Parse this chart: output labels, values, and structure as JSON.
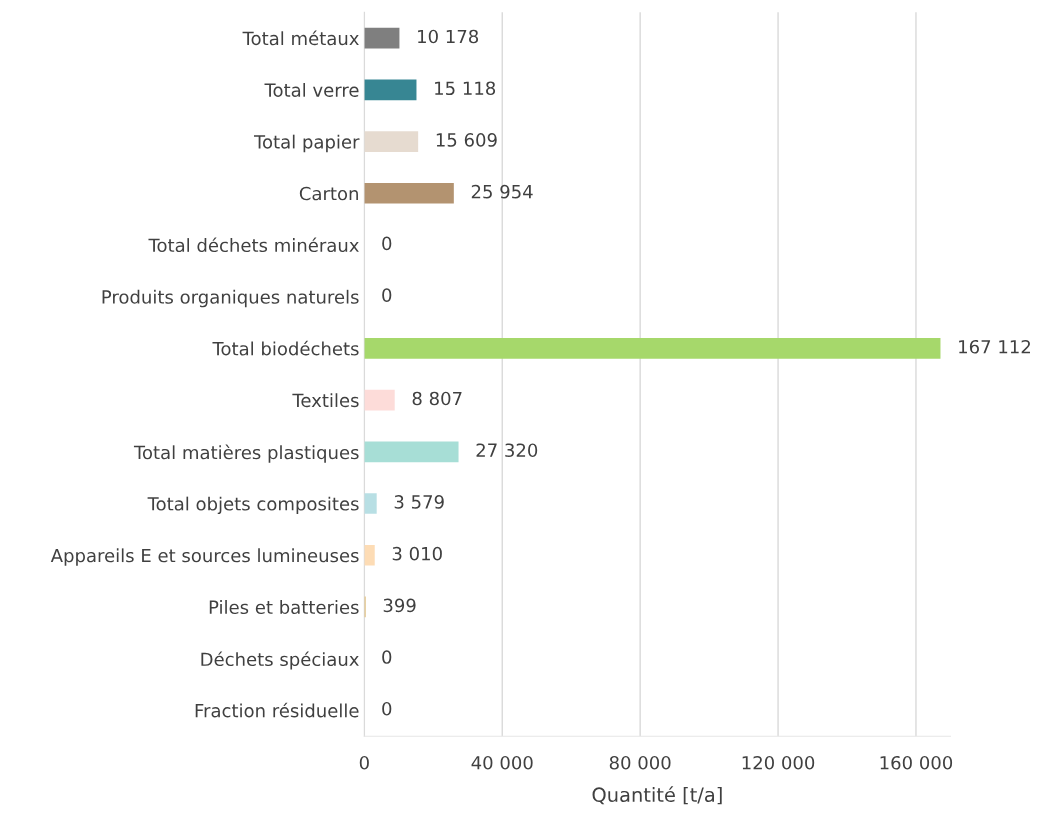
{
  "chart_data": {
    "type": "bar",
    "orientation": "horizontal",
    "xlabel": "Quantité [t/a]",
    "categories": [
      "Total métaux",
      "Total verre",
      "Total papier",
      "Carton",
      "Total déchets minéraux",
      "Produits organiques naturels",
      "Total biodéchets",
      "Textiles",
      "Total matières plastiques",
      "Total objets composites",
      "Appareils E et sources lumineuses",
      "Piles et batteries",
      "Déchets spéciaux",
      "Fraction résiduelle"
    ],
    "values": [
      10178,
      15118,
      15609,
      25954,
      0,
      0,
      167112,
      8807,
      27320,
      3579,
      3010,
      399,
      0,
      0
    ],
    "colors": [
      "#7f7f7f",
      "#378693",
      "#e6dbd0",
      "#b39370",
      "#d9d9d9",
      "#d9d9d9",
      "#a6d86b",
      "#fddcd9",
      "#a7ded6",
      "#b8dfe4",
      "#fddcb5",
      "#e0c080",
      "#d9d9d9",
      "#d9d9d9"
    ],
    "value_labels": [
      "10 178",
      "15 118",
      "15 609",
      "25 954",
      "0",
      "0",
      "167 112",
      "8 807",
      "27 320",
      "3 579",
      "3 010",
      "399",
      "0",
      "0"
    ],
    "xlim": [
      0,
      170000
    ],
    "xticks": [
      0,
      {
        "value": 40000,
        "label": "40 000"
      },
      {
        "value": 80000,
        "label": "80 000"
      },
      {
        "value": 120000,
        "label": "120 000"
      },
      {
        "value": 160000,
        "label": "160 000"
      }
    ],
    "grid": "x",
    "legend": false
  }
}
